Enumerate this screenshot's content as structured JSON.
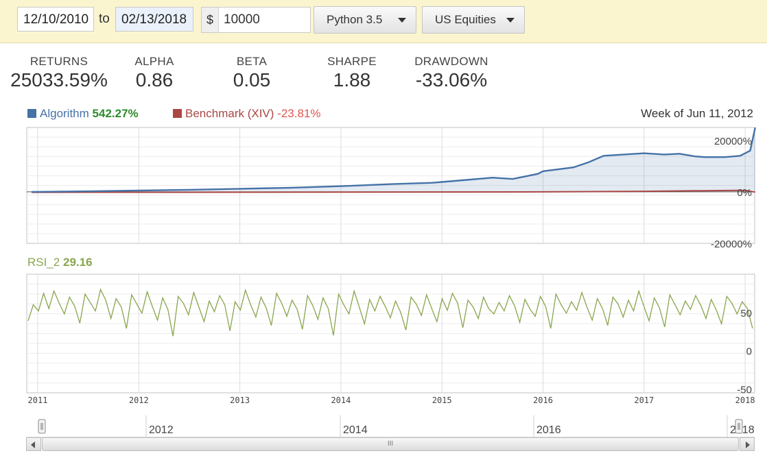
{
  "toolbar": {
    "start_date": "12/10/2010",
    "to_label": "to",
    "end_date": "02/13/2018",
    "currency_symbol": "$",
    "capital": "10000",
    "python_version": "Python 3.5",
    "universe": "US Equities"
  },
  "stats": {
    "returns_label": "RETURNS",
    "returns": "25033.59%",
    "alpha_label": "ALPHA",
    "alpha": "0.86",
    "beta_label": "BETA",
    "beta": "0.05",
    "sharpe_label": "SHARPE",
    "sharpe": "1.88",
    "drawdown_label": "DRAWDOWN",
    "drawdown": "-33.06%"
  },
  "legend": {
    "algorithm_label": "Algorithm",
    "algorithm_value": "542.27%",
    "benchmark_label": "Benchmark (XIV)",
    "benchmark_value": "-23.81%",
    "week_label": "Week of Jun 11, 2012",
    "rsi_label": "RSI_2",
    "rsi_value": "29.16"
  },
  "colors": {
    "algorithm": "#4572a7",
    "benchmark": "#aa4643",
    "rsi": "#89a54e",
    "positive": "#2e8b2e",
    "negative": "#e0554e"
  },
  "chart_data": [
    {
      "type": "area",
      "ylim": [
        -20000,
        25000
      ],
      "y_ticks": [
        "20000%",
        "0%",
        "-20000%"
      ],
      "series": [
        {
          "name": "Algorithm",
          "x": [
            2010.94,
            2011.5,
            2012.0,
            2012.5,
            2013.0,
            2013.5,
            2014.0,
            2014.5,
            2014.9,
            2015.2,
            2015.5,
            2015.7,
            2015.95,
            2016.0,
            2016.3,
            2016.45,
            2016.6,
            2016.8,
            2017.0,
            2017.2,
            2017.35,
            2017.5,
            2017.6,
            2017.8,
            2017.95,
            2018.0,
            2018.05,
            2018.1
          ],
          "values": [
            0,
            200,
            500,
            800,
            1200,
            1600,
            2200,
            3000,
            3500,
            4500,
            5500,
            5000,
            7000,
            8000,
            9500,
            11500,
            14000,
            14500,
            15000,
            14500,
            14800,
            13800,
            13500,
            13500,
            14000,
            15000,
            16000,
            25000
          ]
        },
        {
          "name": "Benchmark (XIV)",
          "x": [
            2010.94,
            2012.0,
            2014.0,
            2016.0,
            2017.0,
            2018.0,
            2018.1
          ],
          "values": [
            -200,
            -150,
            -100,
            0,
            200,
            600,
            -100
          ]
        }
      ]
    },
    {
      "type": "line",
      "ylim": [
        -55,
        100
      ],
      "y_ticks": [
        "50",
        "0",
        "-50"
      ],
      "x_ticks": [
        "2011",
        "2012",
        "2013",
        "2014",
        "2015",
        "2016",
        "2017",
        "2018"
      ],
      "series": [
        {
          "name": "RSI_2",
          "values": [
            39,
            60,
            52,
            75,
            55,
            78,
            62,
            48,
            70,
            58,
            36,
            74,
            63,
            52,
            80,
            66,
            42,
            68,
            57,
            29,
            73,
            61,
            49,
            77,
            58,
            40,
            69,
            54,
            19,
            71,
            62,
            47,
            76,
            57,
            38,
            65,
            51,
            72,
            60,
            26,
            64,
            53,
            79,
            60,
            44,
            70,
            56,
            33,
            75,
            62,
            45,
            66,
            54,
            28,
            72,
            59,
            41,
            69,
            55,
            20,
            74,
            60,
            48,
            78,
            57,
            35,
            67,
            52,
            71,
            58,
            43,
            65,
            50,
            27,
            70,
            61,
            46,
            73,
            55,
            38,
            68,
            53,
            75,
            62,
            30,
            66,
            57,
            42,
            70,
            55,
            48,
            63,
            52,
            72,
            59,
            37,
            67,
            54,
            45,
            71,
            58,
            29,
            74,
            60,
            49,
            64,
            53,
            76,
            57,
            40,
            68,
            55,
            33,
            70,
            61,
            44,
            66,
            52,
            78,
            58,
            39,
            69,
            56,
            31,
            73,
            60,
            47,
            65,
            54,
            72,
            59,
            42,
            67,
            53,
            35,
            71,
            62,
            48,
            64,
            55,
            29.16
          ]
        }
      ]
    }
  ],
  "navigator": {
    "labels": [
      "2012",
      "2014",
      "2016",
      "2018"
    ],
    "scroll_grip": "III"
  }
}
